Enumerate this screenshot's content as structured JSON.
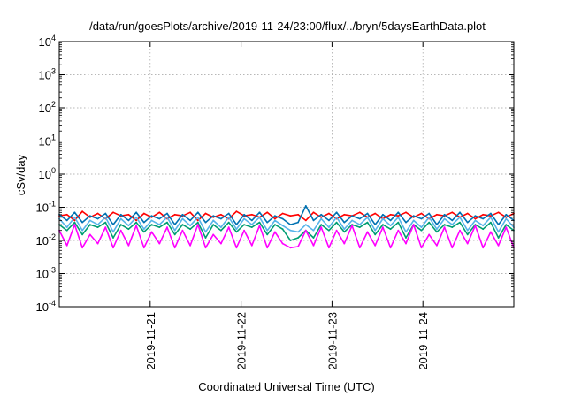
{
  "chart_data": {
    "type": "line",
    "title": "/data/run/goesPlots/archive/2019-11-24/23:00/flux/../bryn/5daysEarthData.plot",
    "xlabel": "Coordinated Universal Time (UTC)",
    "ylabel": "cSv/day",
    "yscale": "log",
    "ylim": [
      0.0001,
      10000
    ],
    "y_ticks": [
      {
        "value": 0.0001,
        "base": "10",
        "exp": "-4"
      },
      {
        "value": 0.001,
        "base": "10",
        "exp": "-3"
      },
      {
        "value": 0.01,
        "base": "10",
        "exp": "-2"
      },
      {
        "value": 0.1,
        "base": "10",
        "exp": "-1"
      },
      {
        "value": 1,
        "base": "10",
        "exp": "0"
      },
      {
        "value": 10,
        "base": "10",
        "exp": "1"
      },
      {
        "value": 100,
        "base": "10",
        "exp": "2"
      },
      {
        "value": 1000,
        "base": "10",
        "exp": "3"
      },
      {
        "value": 10000,
        "base": "10",
        "exp": "4"
      }
    ],
    "xlim": [
      "2019-11-20T00:00",
      "2019-11-25T00:00"
    ],
    "x_ticks": [
      "2019-11-21",
      "2019-11-22",
      "2019-11-23",
      "2019-11-24"
    ],
    "grid": true,
    "legend": "none",
    "series": [
      {
        "color": "#ff0000",
        "values": [
          0.055,
          0.06,
          0.04,
          0.075,
          0.05,
          0.065,
          0.045,
          0.07,
          0.055,
          0.06,
          0.04,
          0.065,
          0.05,
          0.07,
          0.045,
          0.06,
          0.055,
          0.07,
          0.04,
          0.065,
          0.05,
          0.06,
          0.045,
          0.075,
          0.055,
          0.06,
          0.05,
          0.07,
          0.045,
          0.065,
          0.055,
          0.06,
          0.04,
          0.07,
          0.05,
          0.065,
          0.045,
          0.06,
          0.055,
          0.07,
          0.05,
          0.065,
          0.045,
          0.06,
          0.055,
          0.07,
          0.05,
          0.065,
          0.045,
          0.06,
          0.055,
          0.07,
          0.05,
          0.065,
          0.045,
          0.06,
          0.055,
          0.07,
          0.05,
          0.065
        ]
      },
      {
        "color": "#009e73",
        "values": [
          0.03,
          0.02,
          0.035,
          0.015,
          0.03,
          0.025,
          0.035,
          0.012,
          0.03,
          0.022,
          0.035,
          0.018,
          0.03,
          0.025,
          0.035,
          0.015,
          0.03,
          0.022,
          0.035,
          0.012,
          0.03,
          0.02,
          0.035,
          0.018,
          0.03,
          0.025,
          0.035,
          0.015,
          0.03,
          0.022,
          0.01,
          0.012,
          0.02,
          0.012,
          0.03,
          0.02,
          0.035,
          0.018,
          0.03,
          0.025,
          0.035,
          0.015,
          0.03,
          0.022,
          0.035,
          0.012,
          0.03,
          0.02,
          0.035,
          0.018,
          0.03,
          0.025,
          0.035,
          0.015,
          0.03,
          0.022,
          0.035,
          0.012,
          0.03,
          0.02
        ]
      },
      {
        "color": "#56b4e9",
        "values": [
          0.045,
          0.025,
          0.05,
          0.02,
          0.04,
          0.03,
          0.05,
          0.018,
          0.045,
          0.028,
          0.05,
          0.022,
          0.04,
          0.03,
          0.05,
          0.02,
          0.045,
          0.028,
          0.05,
          0.018,
          0.04,
          0.025,
          0.05,
          0.022,
          0.045,
          0.03,
          0.05,
          0.02,
          0.04,
          0.028,
          0.02,
          0.018,
          0.03,
          0.02,
          0.045,
          0.025,
          0.05,
          0.022,
          0.04,
          0.03,
          0.05,
          0.02,
          0.045,
          0.028,
          0.05,
          0.018,
          0.04,
          0.025,
          0.05,
          0.022,
          0.045,
          0.03,
          0.05,
          0.02,
          0.04,
          0.028,
          0.05,
          0.018,
          0.045,
          0.025
        ]
      },
      {
        "color": "#0072b2",
        "values": [
          0.06,
          0.04,
          0.07,
          0.035,
          0.055,
          0.045,
          0.065,
          0.03,
          0.06,
          0.04,
          0.07,
          0.035,
          0.055,
          0.045,
          0.065,
          0.03,
          0.06,
          0.04,
          0.07,
          0.035,
          0.055,
          0.045,
          0.065,
          0.03,
          0.06,
          0.04,
          0.07,
          0.035,
          0.055,
          0.045,
          0.03,
          0.035,
          0.11,
          0.04,
          0.06,
          0.04,
          0.07,
          0.035,
          0.055,
          0.045,
          0.065,
          0.03,
          0.06,
          0.04,
          0.07,
          0.035,
          0.055,
          0.045,
          0.065,
          0.03,
          0.06,
          0.04,
          0.07,
          0.035,
          0.055,
          0.045,
          0.065,
          0.03,
          0.06,
          0.04
        ]
      },
      {
        "color": "#ff00ff",
        "values": [
          0.02,
          0.007,
          0.03,
          0.006,
          0.015,
          0.008,
          0.025,
          0.006,
          0.02,
          0.007,
          0.028,
          0.006,
          0.018,
          0.008,
          0.025,
          0.006,
          0.02,
          0.007,
          0.03,
          0.006,
          0.015,
          0.008,
          0.025,
          0.006,
          0.02,
          0.007,
          0.028,
          0.006,
          0.018,
          0.008,
          0.006,
          0.0065,
          0.02,
          0.007,
          0.025,
          0.006,
          0.02,
          0.008,
          0.028,
          0.006,
          0.018,
          0.007,
          0.025,
          0.006,
          0.02,
          0.008,
          0.03,
          0.006,
          0.015,
          0.007,
          0.025,
          0.006,
          0.02,
          0.008,
          0.028,
          0.006,
          0.018,
          0.007,
          0.025,
          0.006
        ]
      }
    ]
  }
}
